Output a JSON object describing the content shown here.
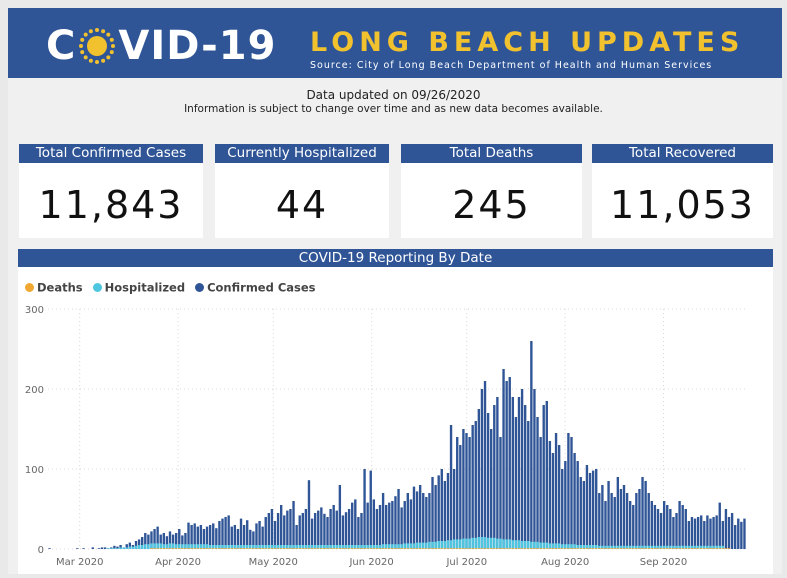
{
  "header": {
    "logo_prefix": "C",
    "logo_suffix": "VID-19",
    "title": "LONG BEACH UPDATES",
    "source": "Source: City of Long Beach Department of Health and Human Services",
    "colors": {
      "banner": "#2f5597",
      "title": "#f2c12e",
      "sun": "#f2c12e"
    }
  },
  "updated": "Data updated on 09/26/2020",
  "info": "Information is subject to change over time and as new data becomes available.",
  "cards": [
    {
      "label": "Total Confirmed Cases",
      "value": "11,843"
    },
    {
      "label": "Currently Hospitalized",
      "value": "44"
    },
    {
      "label": "Total Deaths",
      "value": "245"
    },
    {
      "label": "Total Recovered",
      "value": "11,053"
    }
  ],
  "chart_title": "COVID-19 Reporting By Date",
  "legend": [
    {
      "name": "Deaths",
      "color": "#f0a830"
    },
    {
      "name": "Hospitalized",
      "color": "#4ec6e0"
    },
    {
      "name": "Confirmed Cases",
      "color": "#2f5597"
    }
  ],
  "chart_data": {
    "type": "bar",
    "title": "COVID-19 Reporting By Date",
    "x_ticks": [
      "Mar 2020",
      "Apr 2020",
      "May 2020",
      "Jun 2020",
      "Jul 2020",
      "Aug 2020",
      "Sep 2020"
    ],
    "y_ticks": [
      0,
      100,
      200,
      300
    ],
    "ylim": [
      0,
      300
    ],
    "start_date": "2020-02-20",
    "end_date": "2020-09-26",
    "series": [
      {
        "name": "Confirmed Cases",
        "color": "#2f5597",
        "values": [
          1,
          0,
          0,
          0,
          0,
          0,
          0,
          0,
          0,
          1,
          0,
          1,
          0,
          0,
          2,
          0,
          1,
          2,
          2,
          1,
          2,
          4,
          3,
          5,
          2,
          6,
          8,
          5,
          10,
          12,
          15,
          20,
          18,
          22,
          25,
          28,
          18,
          20,
          16,
          22,
          18,
          20,
          25,
          17,
          20,
          33,
          30,
          32,
          28,
          30,
          25,
          28,
          30,
          32,
          26,
          35,
          38,
          40,
          42,
          28,
          30,
          25,
          38,
          30,
          36,
          24,
          22,
          32,
          35,
          28,
          40,
          45,
          50,
          35,
          45,
          55,
          42,
          48,
          50,
          60,
          30,
          42,
          45,
          50,
          86,
          38,
          45,
          48,
          52,
          44,
          40,
          50,
          55,
          48,
          80,
          42,
          46,
          50,
          58,
          62,
          40,
          45,
          100,
          58,
          98,
          62,
          50,
          55,
          70,
          55,
          58,
          60,
          66,
          75,
          52,
          60,
          70,
          62,
          78,
          72,
          80,
          70,
          65,
          70,
          90,
          80,
          92,
          100,
          85,
          95,
          155,
          100,
          140,
          130,
          150,
          145,
          140,
          155,
          160,
          175,
          200,
          210,
          170,
          150,
          180,
          190,
          140,
          225,
          210,
          215,
          190,
          165,
          190,
          200,
          180,
          160,
          260,
          200,
          165,
          140,
          180,
          185,
          135,
          120,
          145,
          130,
          100,
          110,
          145,
          140,
          120,
          110,
          90,
          85,
          105,
          95,
          98,
          100,
          70,
          80,
          60,
          85,
          70,
          65,
          90,
          75,
          80,
          70,
          60,
          55,
          70,
          75,
          90,
          85,
          70,
          60,
          55,
          50,
          45,
          60,
          55,
          50,
          40,
          45,
          60,
          55,
          50,
          35,
          40,
          38,
          40,
          42,
          35,
          42,
          38,
          40,
          42,
          58,
          35,
          50,
          40,
          45,
          30,
          38,
          34,
          38
        ]
      },
      {
        "name": "Hospitalized",
        "color": "#4ec6e0",
        "values": [
          0,
          0,
          0,
          0,
          0,
          0,
          0,
          0,
          0,
          0,
          0,
          0,
          0,
          0,
          0,
          0,
          0,
          0,
          0,
          1,
          1,
          1,
          1,
          2,
          2,
          2,
          3,
          3,
          4,
          5,
          5,
          6,
          6,
          7,
          7,
          7,
          7,
          6,
          6,
          7,
          7,
          6,
          6,
          6,
          6,
          6,
          6,
          6,
          6,
          6,
          6,
          6,
          5,
          5,
          5,
          5,
          5,
          5,
          5,
          5,
          5,
          5,
          5,
          5,
          5,
          5,
          5,
          5,
          5,
          5,
          5,
          5,
          5,
          5,
          5,
          5,
          5,
          5,
          5,
          5,
          5,
          5,
          5,
          5,
          5,
          5,
          5,
          5,
          5,
          5,
          5,
          5,
          5,
          5,
          5,
          5,
          5,
          5,
          5,
          5,
          5,
          5,
          5,
          5,
          5,
          5,
          5,
          5,
          6,
          6,
          6,
          6,
          6,
          6,
          6,
          7,
          7,
          7,
          7,
          8,
          8,
          8,
          8,
          9,
          9,
          9,
          10,
          10,
          10,
          11,
          11,
          12,
          12,
          12,
          13,
          13,
          13,
          14,
          14,
          15,
          15,
          15,
          14,
          14,
          14,
          13,
          13,
          12,
          12,
          12,
          11,
          11,
          11,
          10,
          10,
          10,
          9,
          9,
          9,
          8,
          8,
          8,
          7,
          7,
          7,
          7,
          6,
          6,
          6,
          6,
          6,
          5,
          5,
          5,
          5,
          5,
          5,
          5,
          4,
          4,
          4,
          4,
          4,
          4,
          4,
          4,
          4,
          4,
          4,
          4,
          4,
          4,
          4,
          4,
          4,
          4,
          4,
          4,
          4,
          4,
          4,
          4,
          4,
          4,
          4,
          4,
          4,
          4,
          4,
          4,
          4,
          4,
          4,
          4,
          4,
          4,
          4,
          4,
          4
        ]
      },
      {
        "name": "Deaths",
        "color": "#f0a830",
        "values": [
          0,
          0,
          0,
          0,
          0,
          0,
          0,
          0,
          0,
          0,
          0,
          0,
          0,
          0,
          0,
          0,
          0,
          0,
          0,
          0,
          0,
          0,
          0,
          0,
          0,
          0,
          0,
          0,
          0,
          0,
          0,
          0,
          0,
          1,
          1,
          1,
          1,
          1,
          1,
          1,
          1,
          1,
          1,
          1,
          1,
          1,
          1,
          1,
          1,
          1,
          1,
          1,
          1,
          1,
          1,
          1,
          1,
          1,
          1,
          1,
          1,
          1,
          1,
          1,
          1,
          1,
          1,
          1,
          1,
          1,
          1,
          1,
          1,
          1,
          1,
          1,
          1,
          1,
          1,
          1,
          1,
          1,
          1,
          1,
          1,
          1,
          1,
          1,
          1,
          1,
          1,
          1,
          1,
          1,
          1,
          1,
          1,
          1,
          1,
          1,
          1,
          1,
          1,
          1,
          1,
          1,
          1,
          1,
          1,
          1,
          1,
          1,
          1,
          1,
          1,
          1,
          1,
          1,
          1,
          1,
          1,
          1,
          1,
          1,
          1,
          1,
          1,
          1,
          1,
          1,
          1,
          1,
          1,
          1,
          1,
          1,
          1,
          1,
          1,
          1,
          1,
          1,
          1,
          1,
          1,
          1,
          1,
          1,
          1,
          1,
          1,
          1,
          1,
          1,
          1,
          1,
          1,
          1,
          1,
          1,
          1,
          1,
          1,
          1,
          1,
          1,
          1,
          1,
          1,
          1,
          1,
          1,
          1,
          1,
          1,
          1,
          1,
          1,
          1,
          1,
          1,
          1,
          1,
          1,
          1,
          1,
          1,
          1,
          1,
          1,
          1,
          1,
          1,
          1,
          1,
          1,
          1,
          1,
          1,
          1,
          1,
          1,
          1,
          1,
          1,
          1,
          1,
          1,
          1,
          1,
          1,
          1,
          1,
          1,
          1,
          1,
          1,
          1,
          1,
          1,
          1
        ]
      }
    ]
  }
}
